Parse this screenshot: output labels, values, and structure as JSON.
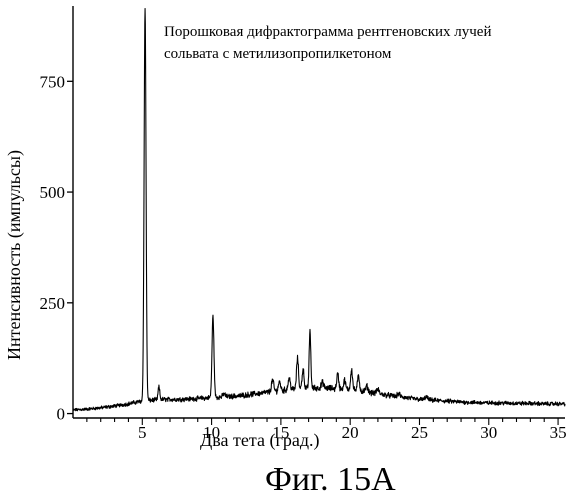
{
  "figure_caption": "Фиг. 15А",
  "chart_data": {
    "type": "line",
    "title": "",
    "annotation_lines": [
      "Порошковая дифрактограмма рентгеновских лучей",
      "сольвата с метилизопропилкетоном"
    ],
    "xlabel": "Два тета (град.)",
    "ylabel": "Интенсивность (импульсы)",
    "xlim": [
      0,
      35.5
    ],
    "ylim": [
      -10,
      920
    ],
    "xticks": [
      5,
      10,
      15,
      20,
      25,
      30,
      35
    ],
    "yticks": [
      0,
      250,
      500,
      750
    ],
    "line_color": "#000000",
    "baseline": [
      [
        0.0,
        8
      ],
      [
        1.0,
        10
      ],
      [
        2.0,
        13
      ],
      [
        3.0,
        17
      ],
      [
        4.0,
        22
      ],
      [
        4.6,
        26
      ],
      [
        5.6,
        30
      ],
      [
        6.5,
        32
      ],
      [
        7.5,
        32
      ],
      [
        8.5,
        33
      ],
      [
        9.5,
        35
      ],
      [
        11.0,
        38
      ],
      [
        12.0,
        40
      ],
      [
        13.0,
        44
      ],
      [
        14.0,
        48
      ],
      [
        15.0,
        52
      ],
      [
        16.0,
        55
      ],
      [
        17.0,
        57
      ],
      [
        18.0,
        58
      ],
      [
        19.0,
        56
      ],
      [
        20.0,
        54
      ],
      [
        21.0,
        50
      ],
      [
        22.0,
        45
      ],
      [
        23.0,
        40
      ],
      [
        24.0,
        36
      ],
      [
        25.0,
        32
      ],
      [
        26.0,
        30
      ],
      [
        27.0,
        28
      ],
      [
        28.0,
        26
      ],
      [
        29.0,
        25
      ],
      [
        30.0,
        24
      ],
      [
        31.0,
        24
      ],
      [
        32.0,
        23
      ],
      [
        33.0,
        23
      ],
      [
        34.0,
        22
      ],
      [
        35.0,
        22
      ],
      [
        35.5,
        22
      ]
    ],
    "peaks": [
      {
        "x": 5.2,
        "y": 915,
        "w": 0.07
      },
      {
        "x": 6.2,
        "y": 60,
        "w": 0.06
      },
      {
        "x": 10.1,
        "y": 220,
        "w": 0.07
      },
      {
        "x": 10.9,
        "y": 45,
        "w": 0.08
      },
      {
        "x": 14.4,
        "y": 75,
        "w": 0.08
      },
      {
        "x": 14.9,
        "y": 72,
        "w": 0.08
      },
      {
        "x": 15.6,
        "y": 80,
        "w": 0.08
      },
      {
        "x": 16.2,
        "y": 125,
        "w": 0.07
      },
      {
        "x": 16.6,
        "y": 100,
        "w": 0.07
      },
      {
        "x": 17.1,
        "y": 185,
        "w": 0.06
      },
      {
        "x": 18.0,
        "y": 70,
        "w": 0.08
      },
      {
        "x": 19.1,
        "y": 90,
        "w": 0.07
      },
      {
        "x": 19.6,
        "y": 75,
        "w": 0.07
      },
      {
        "x": 20.1,
        "y": 100,
        "w": 0.07
      },
      {
        "x": 20.6,
        "y": 85,
        "w": 0.07
      },
      {
        "x": 21.2,
        "y": 62,
        "w": 0.08
      },
      {
        "x": 22.0,
        "y": 55,
        "w": 0.08
      },
      {
        "x": 23.5,
        "y": 45,
        "w": 0.09
      },
      {
        "x": 25.5,
        "y": 38,
        "w": 0.09
      }
    ]
  }
}
